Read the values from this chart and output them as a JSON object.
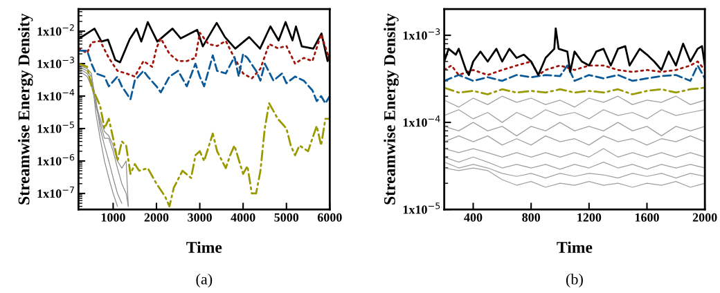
{
  "chart_data": [
    {
      "type": "line",
      "xlabel": "Time",
      "ylabel": "Streamwise Energy Density",
      "annotations": [
        "(a)"
      ],
      "log": "y",
      "xlim": [
        200,
        6000
      ],
      "xticks": [
        1000,
        2000,
        3000,
        4000,
        5000,
        6000
      ],
      "ylim": [
        3.2e-08,
        0.048
      ],
      "yticks": [
        {
          "value": 1e-07,
          "label": "1x10$^{−7}$"
        },
        {
          "value": 1e-06,
          "label": "1x10$^{−6}$"
        },
        {
          "value": 1e-05,
          "label": "1x10$^{−5}$"
        },
        {
          "value": 0.0001,
          "label": "1x10$^{−4}$"
        },
        {
          "value": 0.001,
          "label": "1x10$^{−3}$"
        },
        {
          "value": 0.01,
          "label": "1x10$^{−2}$"
        }
      ],
      "series": [
        {
          "color": "#8c8c8c",
          "line_style": "solid",
          "x": [
            200,
            300,
            400,
            500,
            600,
            700,
            800,
            900,
            1000,
            1100
          ],
          "values": [
            0.0009,
            0.0008,
            0.0007,
            0.0005,
            3e-05,
            5e-06,
            1e-06,
            3e-07,
            1e-07,
            4e-08
          ]
        },
        {
          "color": "#8c8c8c",
          "line_style": "solid",
          "x": [
            200,
            300,
            400,
            500,
            600,
            700,
            800,
            900,
            1000,
            1100,
            1200
          ],
          "values": [
            0.0008,
            0.0007,
            0.0006,
            0.0004,
            8e-05,
            1e-05,
            3e-06,
            1e-06,
            3e-07,
            1e-07,
            5e-08
          ]
        },
        {
          "color": "#8c8c8c",
          "line_style": "solid",
          "x": [
            200,
            300,
            400,
            500,
            600,
            700,
            800,
            900,
            1000,
            1100,
            1200,
            1300,
            1350
          ],
          "values": [
            0.0007,
            0.0006,
            0.0005,
            0.0003,
            5e-05,
            1.5e-05,
            5e-06,
            5e-06,
            2e-06,
            6e-07,
            2e-07,
            1e-07,
            4e-08
          ]
        },
        {
          "color": "#8c8c8c",
          "line_style": "solid",
          "x": [
            200,
            300,
            400,
            500,
            600,
            700,
            800,
            900,
            1000,
            1100,
            1200,
            1300,
            1350
          ],
          "values": [
            0.0006,
            0.0005,
            0.0004,
            0.0002,
            6e-05,
            2e-05,
            8e-06,
            6e-06,
            3e-06,
            1e-06,
            6e-07,
            1e-06,
            4e-08
          ]
        },
        {
          "color": "#000000",
          "line_style": "solid",
          "x": [
            220,
            570,
            730,
            880,
            1050,
            1160,
            1380,
            1540,
            1650,
            1800,
            2020,
            2370,
            2560,
            2940,
            3070,
            3390,
            3580,
            3820,
            4140,
            4390,
            4630,
            4820,
            4980,
            5140,
            5220,
            5355,
            5620,
            5810,
            5950,
            6000
          ],
          "values": [
            0.006,
            0.012,
            0.0048,
            0.0055,
            0.0013,
            0.0011,
            0.0056,
            0.012,
            0.0048,
            0.019,
            0.0048,
            0.012,
            0.006,
            0.011,
            0.0034,
            0.018,
            0.0066,
            0.0029,
            0.0066,
            0.0029,
            0.014,
            0.0052,
            0.019,
            0.0052,
            0.014,
            0.0034,
            0.0029,
            0.0085,
            0.0012,
            0.002
          ]
        },
        {
          "color": "#a0140a",
          "line_style": "dotted",
          "x": [
            200,
            400,
            500,
            700,
            900,
            1100,
            1300,
            1500,
            1700,
            1900,
            2000,
            2100,
            2300,
            2500,
            2700,
            2900,
            3000,
            3200,
            3400,
            3600,
            3800,
            4000,
            4200,
            4400,
            4600,
            4800,
            5000,
            5200,
            5400,
            5600,
            5800,
            6000
          ],
          "values": [
            0.003,
            0.0021,
            0.0045,
            0.005,
            0.0015,
            0.0006,
            0.0005,
            0.0004,
            0.0012,
            0.0008,
            0.003,
            0.006,
            0.002,
            0.0012,
            0.0012,
            0.0015,
            0.009,
            0.004,
            0.0035,
            0.005,
            0.0015,
            0.0005,
            0.00035,
            0.0007,
            0.004,
            0.003,
            0.0035,
            0.001,
            0.0015,
            0.0012,
            0.008,
            0.0013
          ]
        },
        {
          "color": "#0a5a9a",
          "line_style": "dashed",
          "x": [
            200,
            400,
            500,
            600,
            800,
            900,
            1100,
            1200,
            1400,
            1500,
            1700,
            1800,
            2000,
            2100,
            2300,
            2500,
            2700,
            2900,
            3000,
            3100,
            3300,
            3400,
            3600,
            3800,
            3900,
            4000,
            4100,
            4300,
            4400,
            4500,
            4700,
            4900,
            5000,
            5200,
            5400,
            5600,
            5700,
            5800,
            5900,
            6000
          ],
          "values": [
            0.0025,
            0.0025,
            0.001,
            0.0005,
            0.0004,
            0.0002,
            0.0004,
            0.0002,
            8e-05,
            0.0003,
            0.0006,
            0.0004,
            0.0002,
            0.00013,
            0.0004,
            0.0006,
            0.0002,
            0.001,
            0.0004,
            0.0002,
            0.0018,
            0.0006,
            0.0005,
            0.0016,
            0.0004,
            0.002,
            0.0015,
            0.0006,
            0.0003,
            0.001,
            0.0003,
            0.0005,
            0.00025,
            0.0004,
            0.0003,
            0.00015,
            7e-05,
            0.0001,
            6e-05,
            0.0001
          ]
        },
        {
          "color": "#9a9a00",
          "line_style": "dashdot",
          "x": [
            200,
            400,
            500,
            600,
            700,
            800,
            900,
            1000,
            1100,
            1200,
            1300,
            1400,
            1500,
            1600,
            1800,
            2000,
            2200,
            2300,
            2400,
            2600,
            2800,
            2900,
            3000,
            3100,
            3300,
            3400,
            3600,
            3700,
            3800,
            4000,
            4100,
            4200,
            4300,
            4400,
            4500,
            4600,
            4800,
            5000,
            5100,
            5200,
            5300,
            5500,
            5600,
            5700,
            5800,
            5900,
            6000
          ],
          "values": [
            0.001,
            0.0008,
            0.0002,
            0.0001,
            5e-05,
            1e-05,
            2e-05,
            5e-06,
            1e-06,
            4e-06,
            3e-06,
            4e-07,
            8e-07,
            5e-07,
            6e-07,
            2e-07,
            8e-08,
            4e-08,
            1.5e-07,
            5e-07,
            3e-07,
            1.5e-06,
            2e-06,
            1e-06,
            7e-06,
            2e-06,
            6e-07,
            1.5e-06,
            3e-06,
            4e-07,
            7e-07,
            1e-07,
            1e-07,
            5e-07,
            1e-05,
            6e-05,
            2e-05,
            1e-05,
            3e-06,
            1.5e-06,
            3e-06,
            2e-06,
            5e-06,
            1.2e-05,
            3e-06,
            2e-05,
            2e-05
          ]
        }
      ]
    },
    {
      "type": "line",
      "xlabel": "Time",
      "ylabel": "Streamwise Energy Density",
      "annotations": [
        "(b)"
      ],
      "log": "y",
      "xlim": [
        200,
        2000
      ],
      "xticks": [
        400,
        800,
        1200,
        1600,
        2000
      ],
      "ylim": [
        1e-05,
        0.002
      ],
      "yticks": [
        {
          "value": 1e-05,
          "label": "1x10$^{−5}$"
        },
        {
          "value": 0.0001,
          "label": "1x10$^{−4}$"
        },
        {
          "value": 0.001,
          "label": "1x10$^{−3}$"
        }
      ],
      "series": [
        {
          "color": "#a0a0a0",
          "line_style": "solid",
          "x": [
            200,
            300,
            400,
            500,
            600,
            700,
            800,
            900,
            1000,
            1100,
            1200,
            1300,
            1400,
            1500,
            1600,
            1700,
            1800,
            1900,
            2000
          ],
          "values": [
            0.00018,
            0.00015,
            0.00019,
            0.00016,
            0.0002,
            0.00017,
            0.00019,
            0.00016,
            0.00018,
            0.00015,
            0.00019,
            0.00017,
            0.0002,
            0.00016,
            0.00018,
            0.00017,
            0.0002,
            0.00016,
            0.00018
          ]
        },
        {
          "color": "#a0a0a0",
          "line_style": "solid",
          "x": [
            200,
            300,
            400,
            500,
            600,
            700,
            800,
            900,
            1000,
            1100,
            1200,
            1300,
            1400,
            1500,
            1600,
            1700,
            1800,
            1900,
            2000
          ],
          "values": [
            0.00012,
            0.00014,
            0.00011,
            0.00013,
            0.0001,
            0.00013,
            0.00011,
            0.00014,
            0.00012,
            0.00013,
            0.00011,
            0.00014,
            0.00012,
            0.00013,
            0.00011,
            0.00014,
            0.00012,
            0.00013,
            0.00014
          ]
        },
        {
          "color": "#a0a0a0",
          "line_style": "solid",
          "x": [
            200,
            300,
            400,
            500,
            600,
            700,
            800,
            900,
            1000,
            1100,
            1200,
            1300,
            1400,
            1500,
            1600,
            1700,
            1800,
            1900,
            2000
          ],
          "values": [
            9e-05,
            8e-05,
            0.0001,
            8e-05,
            9e-05,
            7e-05,
            9e-05,
            8e-05,
            0.0001,
            8e-05,
            9e-05,
            8e-05,
            0.0001,
            8e-05,
            9e-05,
            7e-05,
            9e-05,
            8e-05,
            9e-05
          ]
        },
        {
          "color": "#a0a0a0",
          "line_style": "solid",
          "x": [
            200,
            300,
            400,
            500,
            600,
            700,
            800,
            900,
            1000,
            1100,
            1200,
            1300,
            1400,
            1500,
            1600,
            1700,
            1800,
            1900,
            2000
          ],
          "values": [
            6e-05,
            7e-05,
            6e-05,
            7e-05,
            5.5e-05,
            6.5e-05,
            5.5e-05,
            7e-05,
            6e-05,
            6.5e-05,
            5.5e-05,
            7e-05,
            6e-05,
            6.5e-05,
            5.5e-05,
            6.5e-05,
            6e-05,
            7e-05,
            6e-05
          ]
        },
        {
          "color": "#a0a0a0",
          "line_style": "solid",
          "x": [
            200,
            300,
            400,
            500,
            600,
            700,
            800,
            900,
            1000,
            1100,
            1200,
            1300,
            1400,
            1500,
            1600,
            1700,
            1800,
            1900,
            2000
          ],
          "values": [
            5e-05,
            4.5e-05,
            5e-05,
            4.5e-05,
            4e-05,
            4.5e-05,
            4e-05,
            4.5e-05,
            4e-05,
            4.5e-05,
            4e-05,
            5e-05,
            4e-05,
            4.5e-05,
            4e-05,
            4.5e-05,
            4e-05,
            4.5e-05,
            4e-05
          ]
        },
        {
          "color": "#a0a0a0",
          "line_style": "solid",
          "x": [
            200,
            300,
            400,
            500,
            600,
            700,
            800,
            900,
            1000,
            1100,
            1200,
            1300,
            1400,
            1500,
            1600,
            1700,
            1800,
            1900,
            2000
          ],
          "values": [
            4e-05,
            3.5e-05,
            4e-05,
            3.5e-05,
            3e-05,
            3.3e-05,
            3e-05,
            3.3e-05,
            2.9e-05,
            3.3e-05,
            3e-05,
            3.5e-05,
            3e-05,
            3.3e-05,
            2.9e-05,
            3.3e-05,
            3e-05,
            3.3e-05,
            3e-05
          ]
        },
        {
          "color": "#a0a0a0",
          "line_style": "solid",
          "x": [
            200,
            300,
            400,
            500,
            600,
            700,
            800,
            900,
            1000,
            1100,
            1200,
            1300,
            1400,
            1500,
            1600,
            1700,
            1800,
            1900,
            2000
          ],
          "values": [
            3.5e-05,
            3e-05,
            3.3e-05,
            3e-05,
            2.6e-05,
            2.4e-05,
            2.6e-05,
            2.3e-05,
            2.6e-05,
            2.4e-05,
            2.6e-05,
            2.5e-05,
            2.3e-05,
            2.6e-05,
            2.4e-05,
            2.6e-05,
            2.3e-05,
            2.6e-05,
            2.4e-05
          ]
        },
        {
          "color": "#a0a0a0",
          "line_style": "solid",
          "x": [
            200,
            300,
            400,
            500,
            600,
            700,
            800,
            900,
            1000,
            1100,
            1200,
            1300,
            1400,
            1500,
            1600,
            1700,
            1800,
            1900,
            2000
          ],
          "values": [
            3e-05,
            2.8e-05,
            3e-05,
            2.8e-05,
            2.2e-05,
            1.9e-05,
            2.1e-05,
            1.8e-05,
            2e-05,
            1.9e-05,
            2.1e-05,
            1.9e-05,
            2e-05,
            1.8e-05,
            2e-05,
            1.9e-05,
            2.1e-05,
            1.8e-05,
            2e-05
          ]
        },
        {
          "color": "#9a9a00",
          "line_style": "dashdot",
          "x": [
            200,
            300,
            400,
            500,
            600,
            700,
            800,
            900,
            1000,
            1100,
            1200,
            1300,
            1400,
            1500,
            1600,
            1700,
            1800,
            1900,
            2000
          ],
          "values": [
            0.00025,
            0.00022,
            0.00023,
            0.00021,
            0.00024,
            0.00022,
            0.00023,
            0.00022,
            0.00024,
            0.00022,
            0.00023,
            0.00022,
            0.00024,
            0.00021,
            0.00023,
            0.00024,
            0.00022,
            0.00024,
            0.00025
          ]
        },
        {
          "color": "#0a5a9a",
          "line_style": "dashed",
          "x": [
            200,
            300,
            400,
            500,
            600,
            700,
            800,
            900,
            1000,
            1050,
            1100,
            1200,
            1300,
            1400,
            1500,
            1600,
            1700,
            1800,
            1900,
            1950,
            2000
          ],
          "values": [
            0.0003,
            0.00035,
            0.0003,
            0.00033,
            0.0003,
            0.00035,
            0.00033,
            0.00035,
            0.00034,
            0.00045,
            0.0003,
            0.00035,
            0.00032,
            0.00035,
            0.0003,
            0.00032,
            0.00034,
            0.00035,
            0.0003,
            0.00045,
            0.00032
          ]
        },
        {
          "color": "#a0140a",
          "line_style": "dotted",
          "x": [
            200,
            250,
            300,
            400,
            500,
            600,
            700,
            800,
            850,
            900,
            1000,
            1100,
            1200,
            1300,
            1400,
            1500,
            1600,
            1700,
            1800,
            1900,
            1950,
            2000
          ],
          "values": [
            0.0004,
            0.00045,
            0.00035,
            0.0004,
            0.00035,
            0.0004,
            0.00045,
            0.0005,
            0.00035,
            0.0004,
            0.00045,
            0.0004,
            0.00045,
            0.00045,
            0.0004,
            0.00038,
            0.0004,
            0.00038,
            0.0004,
            0.00045,
            0.0005,
            0.0004
          ]
        },
        {
          "color": "#000000",
          "line_style": "solid",
          "x": [
            200,
            230,
            280,
            300,
            350,
            370,
            400,
            450,
            500,
            560,
            600,
            650,
            700,
            750,
            800,
            850,
            900,
            960,
            970,
            990,
            1050,
            1070,
            1100,
            1150,
            1200,
            1250,
            1300,
            1350,
            1400,
            1450,
            1480,
            1550,
            1600,
            1650,
            1700,
            1750,
            1800,
            1850,
            1900,
            1950,
            1980,
            2000
          ],
          "values": [
            0.0005,
            0.0007,
            0.0006,
            0.0007,
            0.0004,
            0.00035,
            0.0005,
            0.00065,
            0.0005,
            0.0007,
            0.0005,
            0.0007,
            0.00055,
            0.0006,
            0.0005,
            0.00035,
            0.00055,
            0.0007,
            0.0012,
            0.0007,
            0.00065,
            0.00038,
            0.00065,
            0.0005,
            0.00045,
            0.00065,
            0.0007,
            0.00045,
            0.0007,
            0.00075,
            0.00045,
            0.0007,
            0.0006,
            0.0005,
            0.0004,
            0.00065,
            0.00045,
            0.0008,
            0.0005,
            0.0007,
            0.00075,
            0.00045
          ]
        }
      ]
    }
  ]
}
